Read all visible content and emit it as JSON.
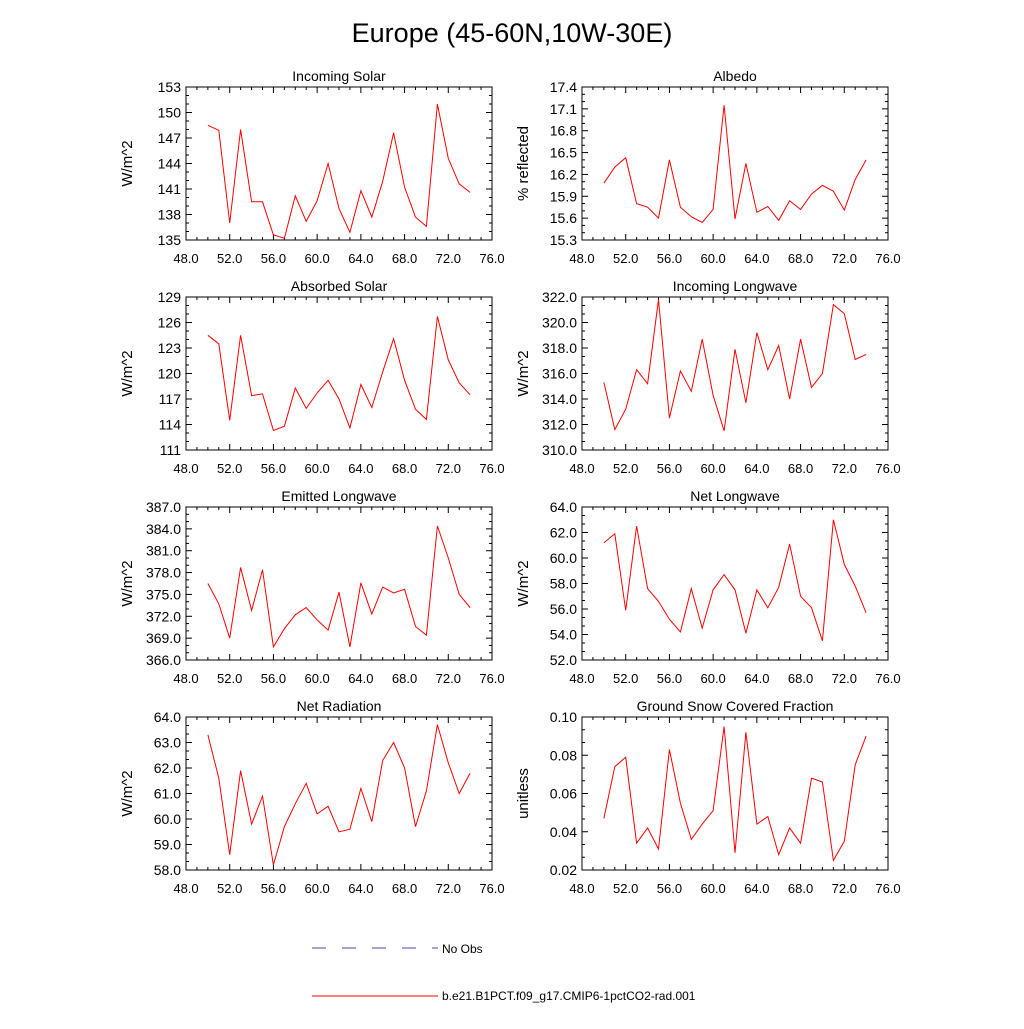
{
  "title": "Europe (45-60N,10W-30E)",
  "colors": {
    "series": "#ff0000",
    "no_obs": "#4a4aa6",
    "axis": "#000000"
  },
  "legend": {
    "entries": [
      {
        "label": "No Obs",
        "style": "dashed",
        "color": "#4a4aa6"
      },
      {
        "label": "b.e21.B1PCT.f09_g17.CMIP6-1pctCO2-rad.001",
        "style": "solid",
        "color": "#ff0000"
      }
    ]
  },
  "chart_data": [
    {
      "type": "line",
      "title": "Incoming Solar",
      "ylabel": "W/m^2",
      "xlim": [
        48,
        76
      ],
      "ylim": [
        135,
        153
      ],
      "xticks": [
        48,
        52,
        56,
        60,
        64,
        68,
        72,
        76
      ],
      "xtick_labels": [
        "48.0",
        "52.0",
        "56.0",
        "60.0",
        "64.0",
        "68.0",
        "72.0",
        "76.0"
      ],
      "yticks": [
        135,
        138,
        141,
        144,
        147,
        150,
        153
      ],
      "ytick_labels": [
        "135",
        "138",
        "141",
        "144",
        "147",
        "150",
        "153"
      ],
      "x": [
        50,
        51,
        52,
        53,
        54,
        55,
        56,
        57,
        58,
        59,
        60,
        61,
        62,
        63,
        64,
        65,
        66,
        67,
        68,
        69,
        70,
        71,
        72,
        73,
        74
      ],
      "values": [
        148.5,
        147.9,
        137.0,
        148.0,
        139.5,
        139.5,
        135.6,
        135.2,
        140.2,
        137.2,
        139.6,
        144.0,
        138.7,
        135.9,
        140.8,
        137.7,
        141.9,
        147.6,
        141.2,
        137.7,
        136.6,
        151.0,
        144.6,
        141.6,
        140.6
      ]
    },
    {
      "type": "line",
      "title": "Albedo",
      "ylabel": "% reflected",
      "xlim": [
        48,
        76
      ],
      "ylim": [
        15.3,
        17.4
      ],
      "xticks": [
        48,
        52,
        56,
        60,
        64,
        68,
        72,
        76
      ],
      "xtick_labels": [
        "48.0",
        "52.0",
        "56.0",
        "60.0",
        "64.0",
        "68.0",
        "72.0",
        "76.0"
      ],
      "yticks": [
        15.3,
        15.6,
        15.9,
        16.2,
        16.5,
        16.8,
        17.1,
        17.4
      ],
      "ytick_labels": [
        "15.3",
        "15.6",
        "15.9",
        "16.2",
        "16.5",
        "16.8",
        "17.1",
        "17.4"
      ],
      "x": [
        50,
        51,
        52,
        53,
        54,
        55,
        56,
        57,
        58,
        59,
        60,
        61,
        62,
        63,
        64,
        65,
        66,
        67,
        68,
        69,
        70,
        71,
        72,
        73,
        74
      ],
      "values": [
        16.08,
        16.3,
        16.43,
        15.8,
        15.75,
        15.6,
        16.4,
        15.75,
        15.62,
        15.54,
        15.72,
        17.15,
        15.59,
        16.35,
        15.68,
        15.76,
        15.57,
        15.84,
        15.72,
        15.93,
        16.05,
        15.97,
        15.71,
        16.13,
        16.4
      ]
    },
    {
      "type": "line",
      "title": "Absorbed Solar",
      "ylabel": "W/m^2",
      "xlim": [
        48,
        76
      ],
      "ylim": [
        111,
        129
      ],
      "xticks": [
        48,
        52,
        56,
        60,
        64,
        68,
        72,
        76
      ],
      "xtick_labels": [
        "48.0",
        "52.0",
        "56.0",
        "60.0",
        "64.0",
        "68.0",
        "72.0",
        "76.0"
      ],
      "yticks": [
        111,
        114,
        117,
        120,
        123,
        126,
        129
      ],
      "ytick_labels": [
        "111",
        "114",
        "117",
        "120",
        "123",
        "126",
        "129"
      ],
      "x": [
        50,
        51,
        52,
        53,
        54,
        55,
        56,
        57,
        58,
        59,
        60,
        61,
        62,
        63,
        64,
        65,
        66,
        67,
        68,
        69,
        70,
        71,
        72,
        73,
        74
      ],
      "values": [
        124.5,
        123.5,
        114.5,
        124.5,
        117.4,
        117.6,
        113.3,
        113.8,
        118.3,
        115.9,
        117.7,
        119.2,
        117.0,
        113.6,
        118.7,
        116.0,
        120.2,
        124.1,
        119.2,
        115.8,
        114.6,
        126.7,
        121.6,
        118.9,
        117.5
      ]
    },
    {
      "type": "line",
      "title": "Incoming Longwave",
      "ylabel": "W/m^2",
      "xlim": [
        48,
        76
      ],
      "ylim": [
        310,
        322
      ],
      "xticks": [
        48,
        52,
        56,
        60,
        64,
        68,
        72,
        76
      ],
      "xtick_labels": [
        "48.0",
        "52.0",
        "56.0",
        "60.0",
        "64.0",
        "68.0",
        "72.0",
        "76.0"
      ],
      "yticks": [
        310,
        312,
        314,
        316,
        318,
        320,
        322
      ],
      "ytick_labels": [
        "310.0",
        "312.0",
        "314.0",
        "316.0",
        "318.0",
        "320.0",
        "322.0"
      ],
      "x": [
        50,
        51,
        52,
        53,
        54,
        55,
        56,
        57,
        58,
        59,
        60,
        61,
        62,
        63,
        64,
        65,
        66,
        67,
        68,
        69,
        70,
        71,
        72,
        73,
        74
      ],
      "values": [
        315.3,
        311.6,
        313.2,
        316.3,
        315.2,
        321.8,
        312.5,
        316.2,
        314.6,
        318.7,
        314.3,
        311.5,
        317.9,
        313.7,
        319.2,
        316.3,
        318.2,
        314.0,
        318.7,
        314.9,
        316.0,
        321.4,
        320.7,
        317.1,
        317.5
      ]
    },
    {
      "type": "line",
      "title": "Emitted Longwave",
      "ylabel": "W/m^2",
      "xlim": [
        48,
        76
      ],
      "ylim": [
        366,
        387
      ],
      "xticks": [
        48,
        52,
        56,
        60,
        64,
        68,
        72,
        76
      ],
      "xtick_labels": [
        "48.0",
        "52.0",
        "56.0",
        "60.0",
        "64.0",
        "68.0",
        "72.0",
        "76.0"
      ],
      "yticks": [
        366,
        369,
        372,
        375,
        378,
        381,
        384,
        387
      ],
      "ytick_labels": [
        "366.0",
        "369.0",
        "372.0",
        "375.0",
        "378.0",
        "381.0",
        "384.0",
        "387.0"
      ],
      "x": [
        50,
        51,
        52,
        53,
        54,
        55,
        56,
        57,
        58,
        59,
        60,
        61,
        62,
        63,
        64,
        65,
        66,
        67,
        68,
        69,
        70,
        71,
        72,
        73,
        74
      ],
      "values": [
        376.5,
        373.7,
        369.0,
        378.7,
        372.8,
        378.4,
        367.8,
        370.3,
        372.2,
        373.2,
        371.5,
        370.1,
        375.3,
        367.8,
        376.6,
        372.3,
        376.0,
        375.2,
        375.7,
        370.6,
        369.4,
        384.4,
        380.0,
        375.0,
        373.2
      ]
    },
    {
      "type": "line",
      "title": "Net Longwave",
      "ylabel": "W/m^2",
      "xlim": [
        48,
        76
      ],
      "ylim": [
        52,
        64
      ],
      "xticks": [
        48,
        52,
        56,
        60,
        64,
        68,
        72,
        76
      ],
      "xtick_labels": [
        "48.0",
        "52.0",
        "56.0",
        "60.0",
        "64.0",
        "68.0",
        "72.0",
        "76.0"
      ],
      "yticks": [
        52,
        54,
        56,
        58,
        60,
        62,
        64
      ],
      "ytick_labels": [
        "52.0",
        "54.0",
        "56.0",
        "58.0",
        "60.0",
        "62.0",
        "64.0"
      ],
      "x": [
        50,
        51,
        52,
        53,
        54,
        55,
        56,
        57,
        58,
        59,
        60,
        61,
        62,
        63,
        64,
        65,
        66,
        67,
        68,
        69,
        70,
        71,
        72,
        73,
        74
      ],
      "values": [
        61.2,
        61.9,
        55.9,
        62.5,
        57.6,
        56.6,
        55.2,
        54.2,
        57.6,
        54.5,
        57.5,
        58.7,
        57.5,
        54.1,
        57.5,
        56.1,
        57.7,
        61.1,
        57.0,
        56.1,
        53.5,
        63.0,
        59.5,
        57.8,
        55.7
      ]
    },
    {
      "type": "line",
      "title": "Net Radiation",
      "ylabel": "W/m^2",
      "xlim": [
        48,
        76
      ],
      "ylim": [
        58,
        64
      ],
      "xticks": [
        48,
        52,
        56,
        60,
        64,
        68,
        72,
        76
      ],
      "xtick_labels": [
        "48.0",
        "52.0",
        "56.0",
        "60.0",
        "64.0",
        "68.0",
        "72.0",
        "76.0"
      ],
      "yticks": [
        58,
        59,
        60,
        61,
        62,
        63,
        64
      ],
      "ytick_labels": [
        "58.0",
        "59.0",
        "60.0",
        "61.0",
        "62.0",
        "63.0",
        "64.0"
      ],
      "x": [
        50,
        51,
        52,
        53,
        54,
        55,
        56,
        57,
        58,
        59,
        60,
        61,
        62,
        63,
        64,
        65,
        66,
        67,
        68,
        69,
        70,
        71,
        72,
        73,
        74
      ],
      "values": [
        63.3,
        61.6,
        58.6,
        61.9,
        59.8,
        60.9,
        58.2,
        59.7,
        60.6,
        61.4,
        60.2,
        60.5,
        59.5,
        59.6,
        61.2,
        59.9,
        62.3,
        63.0,
        62.0,
        59.7,
        61.1,
        63.7,
        62.2,
        61.0,
        61.8
      ]
    },
    {
      "type": "line",
      "title": "Ground Snow Covered Fraction",
      "ylabel": "unitless",
      "xlim": [
        48,
        76
      ],
      "ylim": [
        0.02,
        0.1
      ],
      "xticks": [
        48,
        52,
        56,
        60,
        64,
        68,
        72,
        76
      ],
      "xtick_labels": [
        "48.0",
        "52.0",
        "56.0",
        "60.0",
        "64.0",
        "68.0",
        "72.0",
        "76.0"
      ],
      "yticks": [
        0.02,
        0.04,
        0.06,
        0.08,
        0.1
      ],
      "ytick_labels": [
        "0.02",
        "0.04",
        "0.06",
        "0.08",
        "0.10"
      ],
      "x": [
        50,
        51,
        52,
        53,
        54,
        55,
        56,
        57,
        58,
        59,
        60,
        61,
        62,
        63,
        64,
        65,
        66,
        67,
        68,
        69,
        70,
        71,
        72,
        73,
        74
      ],
      "values": [
        0.047,
        0.074,
        0.079,
        0.034,
        0.042,
        0.031,
        0.083,
        0.055,
        0.036,
        0.044,
        0.051,
        0.095,
        0.029,
        0.092,
        0.044,
        0.048,
        0.028,
        0.042,
        0.034,
        0.068,
        0.066,
        0.025,
        0.035,
        0.075,
        0.09
      ]
    }
  ]
}
